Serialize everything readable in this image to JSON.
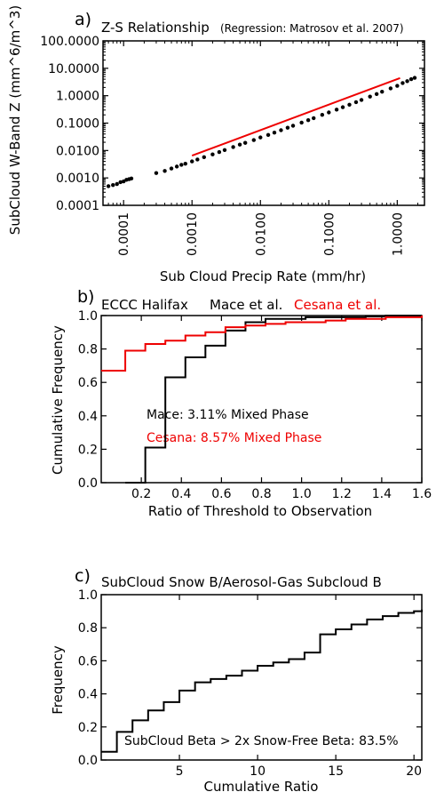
{
  "colors": {
    "black": "#000000",
    "red": "#ee0000",
    "axis": "#000000",
    "background": "#ffffff"
  },
  "chart_data": [
    {
      "type": "scatter",
      "panel_letter": "a)",
      "title": "Z-S Relationship",
      "subtitle": "(Regression: Matrosov et al. 2007)",
      "xlabel": "Sub Cloud Precip Rate (mm/hr)",
      "ylabel": "SubCloud W-Band Z (mm^6/m^3)",
      "xscale": "log",
      "yscale": "log",
      "xlim": [
        5e-05,
        2.5
      ],
      "ylim": [
        0.0001,
        100
      ],
      "xticks": [
        0.0001,
        0.001,
        0.01,
        0.1,
        1.0
      ],
      "xtick_labels": [
        "0.0001",
        "0.0010",
        "0.0100",
        "0.1000",
        "1.0000"
      ],
      "yticks": [
        0.0001,
        0.001,
        0.01,
        0.1,
        1,
        10,
        100
      ],
      "ytick_labels": [
        "0.0001",
        "0.0010",
        "0.0100",
        "0.1000",
        "1.0000",
        "10.0000",
        "100.0000"
      ],
      "grid": false,
      "series": [
        {
          "color": "#000000",
          "style": "points",
          "x": [
            6e-05,
            7e-05,
            8e-05,
            9e-05,
            0.0001,
            0.00011,
            0.00012,
            0.00013,
            0.0003,
            0.0004,
            0.0005,
            0.0006,
            0.0007,
            0.0008,
            0.001,
            0.0012,
            0.0015,
            0.002,
            0.0025,
            0.003,
            0.004,
            0.005,
            0.006,
            0.008,
            0.01,
            0.013,
            0.016,
            0.02,
            0.025,
            0.03,
            0.04,
            0.05,
            0.06,
            0.08,
            0.1,
            0.13,
            0.16,
            0.2,
            0.25,
            0.3,
            0.4,
            0.5,
            0.6,
            0.8,
            1.0,
            1.2,
            1.4,
            1.6,
            1.8
          ],
          "y": [
            0.0005,
            0.00055,
            0.0006,
            0.0007,
            0.00075,
            0.00085,
            0.0009,
            0.00095,
            0.0015,
            0.0018,
            0.0022,
            0.0026,
            0.003,
            0.0033,
            0.004,
            0.0047,
            0.0057,
            0.0072,
            0.0088,
            0.0104,
            0.0134,
            0.0164,
            0.019,
            0.024,
            0.03,
            0.037,
            0.045,
            0.055,
            0.068,
            0.08,
            0.104,
            0.128,
            0.152,
            0.2,
            0.245,
            0.31,
            0.38,
            0.47,
            0.58,
            0.7,
            0.93,
            1.15,
            1.4,
            1.85,
            2.3,
            2.9,
            3.4,
            4.0,
            4.5
          ]
        },
        {
          "color": "#ee0000",
          "style": "line",
          "x": [
            0.001,
            1.1
          ],
          "y": [
            0.0065,
            4.4
          ]
        }
      ]
    },
    {
      "type": "line",
      "panel_letter": "b)",
      "title": "ECCC Halifax",
      "title_parts": [
        "Mace et al.",
        "Cesana et al."
      ],
      "xlabel": "Ratio of Threshold to Observation",
      "ylabel": "Cumulative Frequency",
      "xlim": [
        0,
        1.6
      ],
      "ylim": [
        0,
        1.0
      ],
      "xticks": [
        0.2,
        0.4,
        0.6,
        0.8,
        1.0,
        1.2,
        1.4,
        1.6
      ],
      "xtick_labels": [
        "0.2",
        "0.4",
        "0.6",
        "0.8",
        "1.0",
        "1.2",
        "1.4",
        "1.6"
      ],
      "yticks": [
        0,
        0.2,
        0.4,
        0.6,
        0.8,
        1.0
      ],
      "ytick_labels": [
        "0.0",
        "0.2",
        "0.4",
        "0.6",
        "0.8",
        "1.0"
      ],
      "grid": false,
      "annotations": [
        "Mace: 3.11% Mixed Phase",
        "Cesana: 8.57% Mixed Phase"
      ],
      "series": [
        {
          "name": "Mace et al.",
          "color": "#000000",
          "step": true,
          "x": [
            0.12,
            0.22,
            0.32,
            0.42,
            0.52,
            0.62,
            0.72,
            0.82,
            0.92,
            1.02,
            1.12,
            1.22,
            1.32,
            1.42,
            1.52,
            1.6
          ],
          "y": [
            0.0,
            0.21,
            0.63,
            0.75,
            0.82,
            0.91,
            0.96,
            0.98,
            0.98,
            0.99,
            0.99,
            0.99,
            0.995,
            1.0,
            1.0,
            1.0
          ]
        },
        {
          "name": "Cesana et al.",
          "color": "#ee0000",
          "step": true,
          "x": [
            0.0,
            0.12,
            0.22,
            0.32,
            0.42,
            0.52,
            0.62,
            0.72,
            0.82,
            0.92,
            1.02,
            1.12,
            1.22,
            1.32,
            1.42,
            1.52,
            1.6
          ],
          "y": [
            0.67,
            0.79,
            0.83,
            0.85,
            0.88,
            0.9,
            0.93,
            0.94,
            0.95,
            0.96,
            0.96,
            0.97,
            0.98,
            0.98,
            0.99,
            0.99,
            1.0
          ]
        }
      ]
    },
    {
      "type": "line",
      "panel_letter": "c)",
      "title": "SubCloud Snow B/Aerosol-Gas Subcloud B",
      "xlabel": "Cumulative Ratio",
      "ylabel": "Frequency",
      "xlim": [
        0,
        20.5
      ],
      "ylim": [
        0,
        1.0
      ],
      "xticks": [
        5,
        10,
        15,
        20
      ],
      "xtick_labels": [
        "5",
        "10",
        "15",
        "20"
      ],
      "yticks": [
        0,
        0.2,
        0.4,
        0.6,
        0.8,
        1.0
      ],
      "ytick_labels": [
        "0.0",
        "0.2",
        "0.4",
        "0.6",
        "0.8",
        "1.0"
      ],
      "grid": false,
      "annotations": [
        "SubCloud Beta > 2x Snow-Free Beta: 83.5%"
      ],
      "series": [
        {
          "color": "#000000",
          "step": true,
          "x": [
            0,
            1,
            2,
            3,
            4,
            5,
            6,
            7,
            8,
            9,
            10,
            11,
            12,
            13,
            14,
            15,
            16,
            17,
            18,
            19,
            20,
            20.5
          ],
          "y": [
            0.05,
            0.17,
            0.24,
            0.3,
            0.35,
            0.42,
            0.47,
            0.49,
            0.51,
            0.54,
            0.57,
            0.59,
            0.61,
            0.65,
            0.76,
            0.79,
            0.82,
            0.85,
            0.87,
            0.89,
            0.9,
            0.91
          ]
        }
      ]
    }
  ]
}
